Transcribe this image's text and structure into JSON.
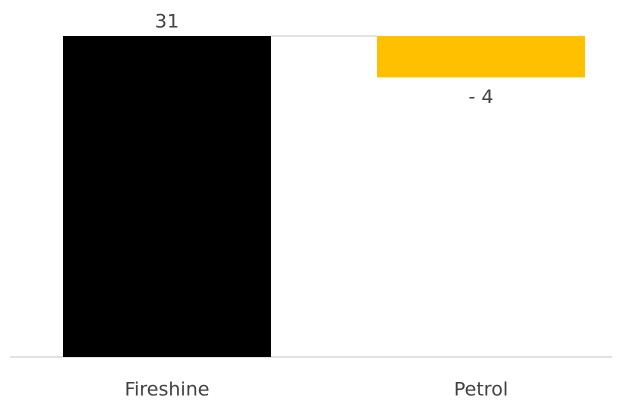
{
  "chart_data": {
    "type": "waterfall",
    "categories": [
      "Fireshine",
      "Petrol"
    ],
    "values": [
      31,
      -4
    ],
    "value_labels": [
      "31",
      "- 4"
    ],
    "colors": [
      "#000000",
      "#ffc000"
    ],
    "ylim": [
      0,
      31
    ]
  }
}
